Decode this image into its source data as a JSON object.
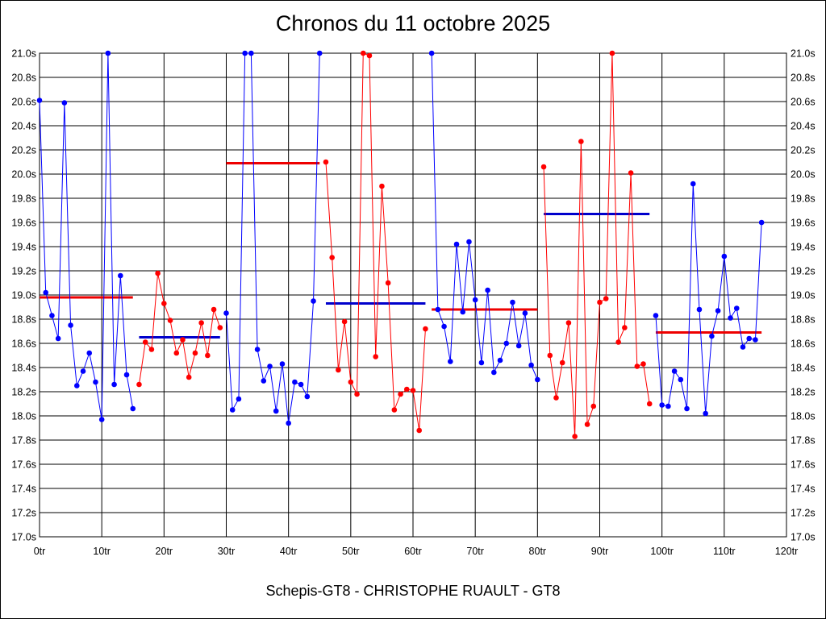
{
  "chart_data": {
    "type": "line",
    "title": "Chronos du 11 octobre 2025",
    "subtitle": "Schepis-GT8 - CHRISTOPHE RUAULT - GT8",
    "xlabel": "",
    "ylabel": "",
    "xlim": [
      0,
      120
    ],
    "ylim": [
      17.0,
      21.0
    ],
    "x_ticks": [
      0,
      10,
      20,
      30,
      40,
      50,
      60,
      70,
      80,
      90,
      100,
      110,
      120
    ],
    "x_tick_labels": [
      "0tr",
      "10tr",
      "20tr",
      "30tr",
      "40tr",
      "50tr",
      "60tr",
      "70tr",
      "80tr",
      "90tr",
      "100tr",
      "110tr",
      "120tr"
    ],
    "y_ticks": [
      17.0,
      17.2,
      17.4,
      17.6,
      17.8,
      18.0,
      18.2,
      18.4,
      18.6,
      18.8,
      19.0,
      19.2,
      19.4,
      19.6,
      19.8,
      20.0,
      20.2,
      20.4,
      20.6,
      20.8,
      21.0
    ],
    "y_tick_labels": [
      "17.0s",
      "17.2s",
      "17.4s",
      "17.6s",
      "17.8s",
      "18.0s",
      "18.2s",
      "18.4s",
      "18.6s",
      "18.8s",
      "19.0s",
      "19.2s",
      "19.4s",
      "19.6s",
      "19.8s",
      "20.0s",
      "20.2s",
      "20.4s",
      "20.6s",
      "20.8s",
      "21.0s"
    ],
    "grid": true,
    "colors": {
      "blue": "#0000ff",
      "red": "#ff0000",
      "blue_avg": "#0000cc",
      "red_avg": "#ee0000"
    },
    "series": [
      {
        "color": "blue",
        "x": [
          0,
          1,
          2,
          3,
          4,
          5,
          6,
          7,
          8,
          9,
          10,
          11,
          12,
          13,
          14,
          15
        ],
        "y": [
          20.61,
          19.02,
          18.83,
          18.64,
          20.59,
          18.75,
          18.25,
          18.37,
          18.52,
          18.28,
          17.97,
          21.0,
          18.26,
          19.16,
          18.34,
          18.06
        ]
      },
      {
        "color": "red",
        "x": [
          16,
          17,
          18,
          19,
          20,
          21,
          22,
          23,
          24,
          25,
          26,
          27,
          28,
          29
        ],
        "y": [
          18.26,
          18.61,
          18.55,
          19.18,
          18.93,
          18.79,
          18.52,
          18.63,
          18.32,
          18.52,
          18.77,
          18.5,
          18.88,
          18.73
        ]
      },
      {
        "color": "blue",
        "x": [
          30,
          31,
          32,
          33,
          34,
          35,
          36,
          37,
          38,
          39,
          40,
          41,
          42,
          43,
          44,
          45
        ],
        "y": [
          18.85,
          18.05,
          18.14,
          21.0,
          21.0,
          18.55,
          18.29,
          18.41,
          18.04,
          18.43,
          17.94,
          18.28,
          18.26,
          18.16,
          18.95,
          21.0
        ]
      },
      {
        "color": "red",
        "x": [
          46,
          47,
          48,
          49,
          50,
          51,
          52,
          53,
          54,
          55,
          56,
          57,
          58,
          59,
          60,
          61,
          62
        ],
        "y": [
          20.1,
          19.31,
          18.38,
          18.78,
          18.28,
          18.18,
          21.0,
          20.98,
          18.49,
          19.9,
          19.1,
          18.05,
          18.18,
          18.22,
          18.21,
          17.88,
          18.72
        ]
      },
      {
        "color": "blue",
        "x": [
          63,
          64,
          65,
          66,
          67,
          68,
          69,
          70,
          71,
          72,
          73,
          74,
          75,
          76,
          77,
          78,
          79,
          80
        ],
        "y": [
          21.0,
          18.88,
          18.74,
          18.45,
          19.42,
          18.86,
          19.44,
          18.96,
          18.44,
          19.04,
          18.36,
          18.46,
          18.6,
          18.94,
          18.58,
          18.85,
          18.42,
          18.3
        ]
      },
      {
        "color": "red",
        "x": [
          81,
          82,
          83,
          84,
          85,
          86,
          87,
          88,
          89,
          90,
          91,
          92,
          93,
          94,
          95,
          96,
          97,
          98
        ],
        "y": [
          20.06,
          18.5,
          18.15,
          18.44,
          18.77,
          17.83,
          20.27,
          17.93,
          18.08,
          18.94,
          18.97,
          21.0,
          18.61,
          18.73,
          20.01,
          18.41,
          18.43,
          18.1
        ]
      },
      {
        "color": "blue",
        "x": [
          99,
          100,
          101,
          102,
          103,
          104,
          105,
          106,
          107,
          108,
          109,
          110,
          111,
          112,
          113,
          114,
          115,
          116
        ],
        "y": [
          18.83,
          18.09,
          18.08,
          18.37,
          18.3,
          18.06,
          19.92,
          18.88,
          18.02,
          18.66,
          18.87,
          19.32,
          18.81,
          18.89,
          18.57,
          18.64,
          18.63,
          19.6
        ]
      }
    ],
    "averages": [
      {
        "color": "red",
        "x_start": 0,
        "x_end": 15,
        "y": 18.98
      },
      {
        "color": "blue",
        "x_start": 16,
        "x_end": 29,
        "y": 18.65
      },
      {
        "color": "red",
        "x_start": 30,
        "x_end": 45,
        "y": 20.09
      },
      {
        "color": "blue",
        "x_start": 46,
        "x_end": 62,
        "y": 18.93
      },
      {
        "color": "red",
        "x_start": 63,
        "x_end": 80,
        "y": 18.88
      },
      {
        "color": "blue",
        "x_start": 81,
        "x_end": 98,
        "y": 19.67
      },
      {
        "color": "red",
        "x_start": 99,
        "x_end": 116,
        "y": 18.69
      }
    ]
  }
}
